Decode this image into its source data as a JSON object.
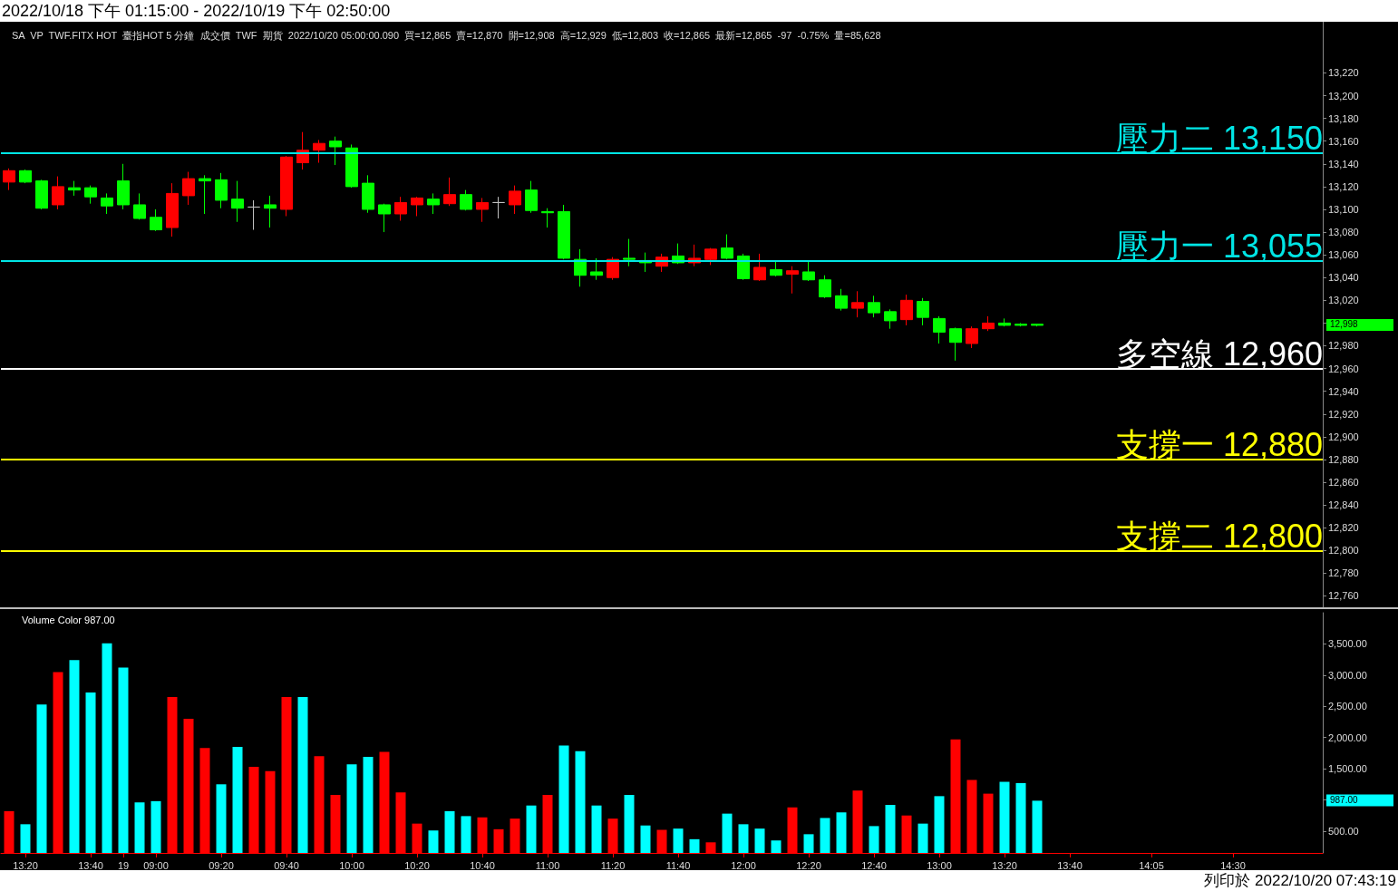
{
  "chart_data": [
    {
      "type": "candlestick",
      "title": "2022/10/18 下午 01:15:00 - 2022/10/19 下午 02:50:00",
      "subtitle": "SA  VP  TWF.FITX HOT  臺指HOT 5 分鐘  成交價  TWF  期貨  2022/10/20 05:00:00.090  買=12,865  賣=12,870  開=12,908  高=12,929  低=12,803  收=12,865  最新=12,865  -97  -0.75%  量=85,628",
      "ohlc": [
        [
          13124,
          13136,
          13117,
          13134
        ],
        [
          13134,
          13135,
          13123,
          13124
        ],
        [
          13125,
          13126,
          13100,
          13101
        ],
        [
          13104,
          13129,
          13100,
          13120
        ],
        [
          13119,
          13125,
          13112,
          13117
        ],
        [
          13119,
          13121,
          13105,
          13111
        ],
        [
          13110,
          13114,
          13096,
          13103
        ],
        [
          13125,
          13140,
          13100,
          13104
        ],
        [
          13104,
          13114,
          13091,
          13092
        ],
        [
          13093,
          13100,
          13081,
          13082
        ],
        [
          13084,
          13123,
          13076,
          13114
        ],
        [
          13112,
          13133,
          13104,
          13127
        ],
        [
          13127,
          13130,
          13096,
          13125
        ],
        [
          13126,
          13132,
          13101,
          13108
        ],
        [
          13109,
          13125,
          13089,
          13101
        ],
        [
          13102,
          13108,
          13082,
          13102
        ],
        [
          13104,
          13112,
          13084,
          13101
        ],
        [
          13100,
          13147,
          13094,
          13146
        ],
        [
          13141,
          13168,
          13135,
          13152
        ],
        [
          13152,
          13161,
          13141,
          13158
        ],
        [
          13160,
          13164,
          13139,
          13155
        ],
        [
          13154,
          13157,
          13119,
          13120
        ],
        [
          13123,
          13130,
          13097,
          13100
        ],
        [
          13104,
          13105,
          13080,
          13096
        ],
        [
          13096,
          13111,
          13090,
          13106
        ],
        [
          13104,
          13111,
          13094,
          13110
        ],
        [
          13109,
          13114,
          13096,
          13104
        ],
        [
          13105,
          13128,
          13103,
          13113
        ],
        [
          13113,
          13117,
          13099,
          13100
        ],
        [
          13100,
          13110,
          13089,
          13106
        ],
        [
          13106,
          13111,
          13092,
          13106
        ],
        [
          13104,
          13121,
          13096,
          13116
        ],
        [
          13117,
          13125,
          13097,
          13099
        ],
        [
          13098,
          13101,
          13084,
          13097
        ],
        [
          13098,
          13104,
          13056,
          13057
        ],
        [
          13056,
          13065,
          13032,
          13042
        ],
        [
          13045,
          13057,
          13038,
          13042
        ],
        [
          13040,
          13058,
          13038,
          13056
        ],
        [
          13057,
          13074,
          13050,
          13056
        ],
        [
          13055,
          13062,
          13045,
          13053
        ],
        [
          13050,
          13061,
          13045,
          13058
        ],
        [
          13059,
          13070,
          13052,
          13053
        ],
        [
          13053,
          13069,
          13050,
          13057
        ],
        [
          13056,
          13066,
          13051,
          13065
        ],
        [
          13066,
          13078,
          13056,
          13057
        ],
        [
          13059,
          13061,
          13038,
          13039
        ],
        [
          13038,
          13061,
          13037,
          13049
        ],
        [
          13047,
          13054,
          13041,
          13042
        ],
        [
          13043,
          13050,
          13026,
          13046
        ],
        [
          13045,
          13054,
          13037,
          13038
        ],
        [
          13038,
          13042,
          13022,
          13023
        ],
        [
          13024,
          13030,
          13011,
          13013
        ],
        [
          13013,
          13028,
          13005,
          13018
        ],
        [
          13018,
          13024,
          13005,
          13009
        ],
        [
          13010,
          13012,
          12995,
          13002
        ],
        [
          13003,
          13025,
          12998,
          13020
        ],
        [
          13019,
          13022,
          12998,
          13005
        ],
        [
          13004,
          13006,
          12982,
          12992
        ],
        [
          12995,
          12996,
          12967,
          12983
        ],
        [
          12982,
          12997,
          12978,
          12995
        ],
        [
          12995,
          13006,
          12993,
          13000
        ],
        [
          13000,
          13004,
          12997,
          12998
        ],
        [
          12999,
          13000,
          12997,
          12998
        ],
        [
          12999,
          12999,
          12997,
          12998
        ],
        null,
        null,
        null,
        null,
        null,
        null,
        null,
        null,
        null,
        null,
        null,
        null,
        null,
        null,
        null,
        null,
        null
      ],
      "colors": [
        "#ff0000",
        "#00ff00",
        "#00ff00",
        "#ff0000",
        "#00ff00",
        "#00ff00",
        "#00ff00",
        "#00ff00",
        "#00ff00",
        "#00ff00",
        "#ff0000",
        "#ff0000",
        "#00ff00",
        "#00ff00",
        "#00ff00",
        "#c0c0c0",
        "#00ff00",
        "#ff0000",
        "#ff0000",
        "#ff0000",
        "#00ff00",
        "#00ff00",
        "#00ff00",
        "#00ff00",
        "#ff0000",
        "#ff0000",
        "#00ff00",
        "#ff0000",
        "#00ff00",
        "#ff0000",
        "#c0c0c0",
        "#ff0000",
        "#00ff00",
        "#00ff00",
        "#00ff00",
        "#00ff00",
        "#00ff00",
        "#ff0000",
        "#00ff00",
        "#00ff00",
        "#ff0000",
        "#00ff00",
        "#ff0000",
        "#ff0000",
        "#00ff00",
        "#00ff00",
        "#ff0000",
        "#00ff00",
        "#ff0000",
        "#00ff00",
        "#00ff00",
        "#00ff00",
        "#ff0000",
        "#00ff00",
        "#00ff00",
        "#ff0000",
        "#00ff00",
        "#00ff00",
        "#00ff00",
        "#ff0000",
        "#ff0000",
        "#00ff00",
        "#00ff00",
        "#00ff00",
        null,
        null,
        null,
        null,
        null,
        null,
        null,
        null,
        null,
        null,
        null,
        null,
        null,
        null,
        null,
        null,
        null
      ],
      "ylim": [
        12750,
        13265
      ],
      "yticks": [
        {
          "value": 12760,
          "label": "12,760"
        },
        {
          "value": 12780,
          "label": "12,780"
        },
        {
          "value": 12800,
          "label": "12,800"
        },
        {
          "value": 12820,
          "label": "12,820"
        },
        {
          "value": 12840,
          "label": "12,840"
        },
        {
          "value": 12860,
          "label": "12,860"
        },
        {
          "value": 12880,
          "label": "12,880"
        },
        {
          "value": 12900,
          "label": "12,900"
        },
        {
          "value": 12920,
          "label": "12,920"
        },
        {
          "value": 12940,
          "label": "12,940"
        },
        {
          "value": 12960,
          "label": "12,960"
        },
        {
          "value": 12980,
          "label": "12,980"
        },
        {
          "value": 13000,
          "label": null
        },
        {
          "value": 13020,
          "label": "13,020"
        },
        {
          "value": 13040,
          "label": "13,040"
        },
        {
          "value": 13060,
          "label": "13,060"
        },
        {
          "value": 13080,
          "label": "13,080"
        },
        {
          "value": 13100,
          "label": "13,100"
        },
        {
          "value": 13120,
          "label": "13,120"
        },
        {
          "value": 13140,
          "label": "13,140"
        },
        {
          "value": 13160,
          "label": "13,160"
        },
        {
          "value": 13180,
          "label": "13,180"
        },
        {
          "value": 13200,
          "label": "13,200"
        },
        {
          "value": 13220,
          "label": "13,220"
        }
      ],
      "ref_lines": [
        {
          "axis": "y",
          "value": 13150,
          "label": "壓力二 13,150",
          "color": "#00e5e5"
        },
        {
          "axis": "y",
          "value": 13055,
          "label": "壓力一 13,055",
          "color": "#00e5e5"
        },
        {
          "axis": "y",
          "value": 12960,
          "label": "多空線 12,960",
          "color": "#ffffff"
        },
        {
          "axis": "y",
          "value": 12880,
          "label": "支撐一 12,880",
          "color": "#ffff00"
        },
        {
          "axis": "y",
          "value": 12800,
          "label": "支撐二 12,800",
          "color": "#ffff00"
        }
      ],
      "annotations": [
        "12,998"
      ],
      "tick_labels": "y"
    },
    {
      "type": "bar",
      "categories": [
        null,
        "13:20",
        null,
        null,
        null,
        "13:40",
        null,
        "19",
        null,
        "09:00",
        null,
        null,
        null,
        "09:20",
        null,
        null,
        null,
        "09:40",
        null,
        null,
        null,
        "10:00",
        null,
        null,
        null,
        "10:20",
        null,
        null,
        null,
        "10:40",
        null,
        null,
        null,
        "11:00",
        null,
        null,
        null,
        "11:20",
        null,
        null,
        null,
        "11:40",
        null,
        null,
        null,
        "12:00",
        null,
        null,
        null,
        "12:20",
        null,
        null,
        null,
        "12:40",
        null,
        null,
        null,
        "13:00",
        null,
        null,
        null,
        "13:20",
        null,
        null,
        null,
        "13:40",
        null,
        null,
        null,
        null,
        "14:05",
        null,
        null,
        null,
        null,
        "14:30",
        null,
        null,
        null,
        null,
        null
      ],
      "values": [
        820,
        610,
        2530,
        3050,
        3240,
        2720,
        3510,
        3120,
        960,
        980,
        2650,
        2300,
        1830,
        1250,
        1850,
        1530,
        1460,
        2650,
        2650,
        1700,
        1080,
        1570,
        1690,
        1770,
        1120,
        620,
        510,
        820,
        740,
        720,
        530,
        700,
        910,
        1080,
        1870,
        1780,
        910,
        700,
        1080,
        590,
        520,
        540,
        370,
        320,
        780,
        610,
        540,
        350,
        880,
        450,
        710,
        800,
        1150,
        580,
        920,
        750,
        620,
        1060,
        1970,
        1320,
        1100,
        1290,
        1270,
        987,
        null,
        null,
        null,
        null,
        null,
        null,
        null,
        null,
        null,
        null,
        null,
        null,
        null,
        null,
        null,
        null,
        null
      ],
      "colors": [
        "#ff0000",
        "#00ffff",
        "#00ffff",
        "#ff0000",
        "#00ffff",
        "#00ffff",
        "#00ffff",
        "#00ffff",
        "#00ffff",
        "#00ffff",
        "#ff0000",
        "#ff0000",
        "#ff0000",
        "#00ffff",
        "#00ffff",
        "#ff0000",
        "#ff0000",
        "#ff0000",
        "#00ffff",
        "#ff0000",
        "#ff0000",
        "#00ffff",
        "#00ffff",
        "#ff0000",
        "#ff0000",
        "#ff0000",
        "#00ffff",
        "#00ffff",
        "#00ffff",
        "#ff0000",
        "#ff0000",
        "#ff0000",
        "#00ffff",
        "#ff0000",
        "#00ffff",
        "#00ffff",
        "#00ffff",
        "#ff0000",
        "#00ffff",
        "#00ffff",
        "#ff0000",
        "#00ffff",
        "#00ffff",
        "#ff0000",
        "#00ffff",
        "#00ffff",
        "#00ffff",
        "#00ffff",
        "#ff0000",
        "#00ffff",
        "#00ffff",
        "#00ffff",
        "#ff0000",
        "#00ffff",
        "#00ffff",
        "#ff0000",
        "#00ffff",
        "#00ffff",
        "#ff0000",
        "#ff0000",
        "#ff0000",
        "#00ffff",
        "#00ffff",
        "#00ffff",
        null,
        null,
        null,
        null,
        null,
        null,
        null,
        null,
        null,
        null,
        null,
        null,
        null,
        null,
        null,
        null,
        null
      ],
      "ylim": [
        150,
        4000
      ],
      "yticks": [
        {
          "value": 500,
          "label": "500.00"
        },
        {
          "value": 1000,
          "label": null
        },
        {
          "value": 1500,
          "label": "1,500.00"
        },
        {
          "value": 2000,
          "label": "2,000.00"
        },
        {
          "value": 2500,
          "label": "2,500.00"
        },
        {
          "value": 3000,
          "label": "3,000.00"
        },
        {
          "value": 3500,
          "label": "3,500.00"
        }
      ],
      "annotations": [
        "Volume Color 987.00",
        "987.00",
        "列印於 2022/10/20 07:43:19"
      ]
    }
  ]
}
